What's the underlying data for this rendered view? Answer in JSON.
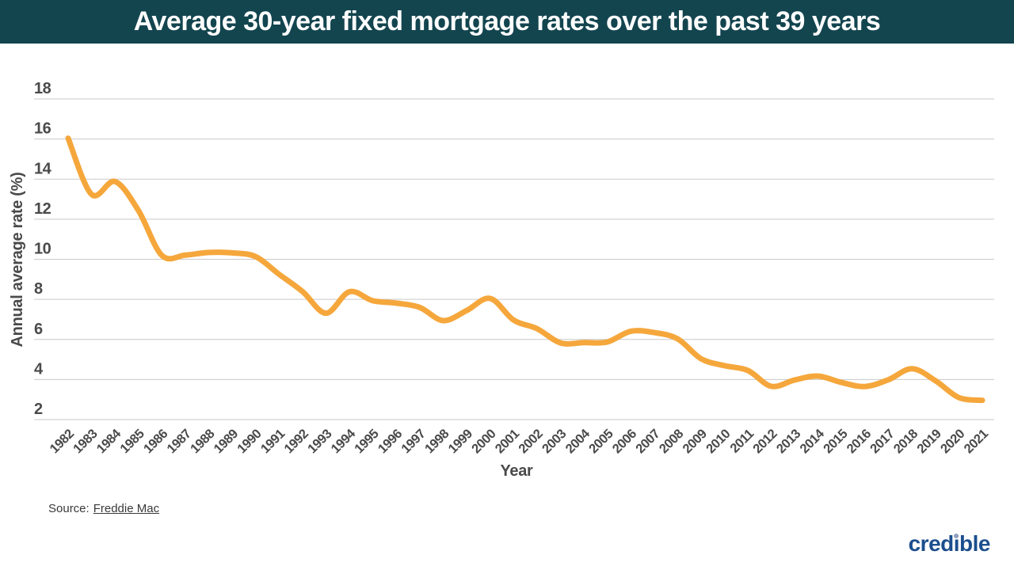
{
  "header": {
    "title": "Average 30-year fixed mortgage rates over the past 39 years",
    "background_color": "#13454F",
    "text_color": "#FFFFFF"
  },
  "chart_data": {
    "type": "line",
    "title": "Average 30-year fixed mortgage rates over the past 39 years",
    "xlabel": "Year",
    "ylabel": "Annual average rate (%)",
    "x": [
      1982,
      1983,
      1984,
      1985,
      1986,
      1987,
      1988,
      1989,
      1990,
      1991,
      1992,
      1993,
      1994,
      1995,
      1996,
      1997,
      1998,
      1999,
      2000,
      2001,
      2002,
      2003,
      2004,
      2005,
      2006,
      2007,
      2008,
      2009,
      2010,
      2011,
      2012,
      2013,
      2014,
      2015,
      2016,
      2017,
      2018,
      2019,
      2020,
      2021
    ],
    "series": [
      {
        "name": "Annual average 30-year fixed mortgage rate (%)",
        "color": "#F5A73C",
        "values": [
          16.04,
          13.24,
          13.88,
          12.43,
          10.19,
          10.21,
          10.34,
          10.32,
          10.13,
          9.25,
          8.39,
          7.31,
          8.38,
          7.93,
          7.81,
          7.6,
          6.94,
          7.44,
          8.05,
          6.97,
          6.54,
          5.83,
          5.84,
          5.87,
          6.41,
          6.34,
          6.03,
          5.04,
          4.69,
          4.45,
          3.66,
          3.98,
          4.17,
          3.85,
          3.65,
          3.99,
          4.54,
          3.94,
          3.1,
          2.96
        ]
      }
    ],
    "y_ticks": [
      18,
      16,
      14,
      12,
      10,
      8,
      6,
      4,
      2
    ],
    "ylim": [
      2,
      18
    ],
    "grid": "horizontal",
    "gridline_color": "#C9C9C9",
    "axis_text_color": "#4A4A4A",
    "legend": "none"
  },
  "footer": {
    "source_prefix": "Source:",
    "source_link": "Freddie Mac"
  },
  "brand": {
    "name": "credible",
    "part_before_i": "cred",
    "letter_i": "i",
    "part_after_i": "ble",
    "color": "#1B4E8E",
    "i_dot_color": "#8E9FBC"
  }
}
